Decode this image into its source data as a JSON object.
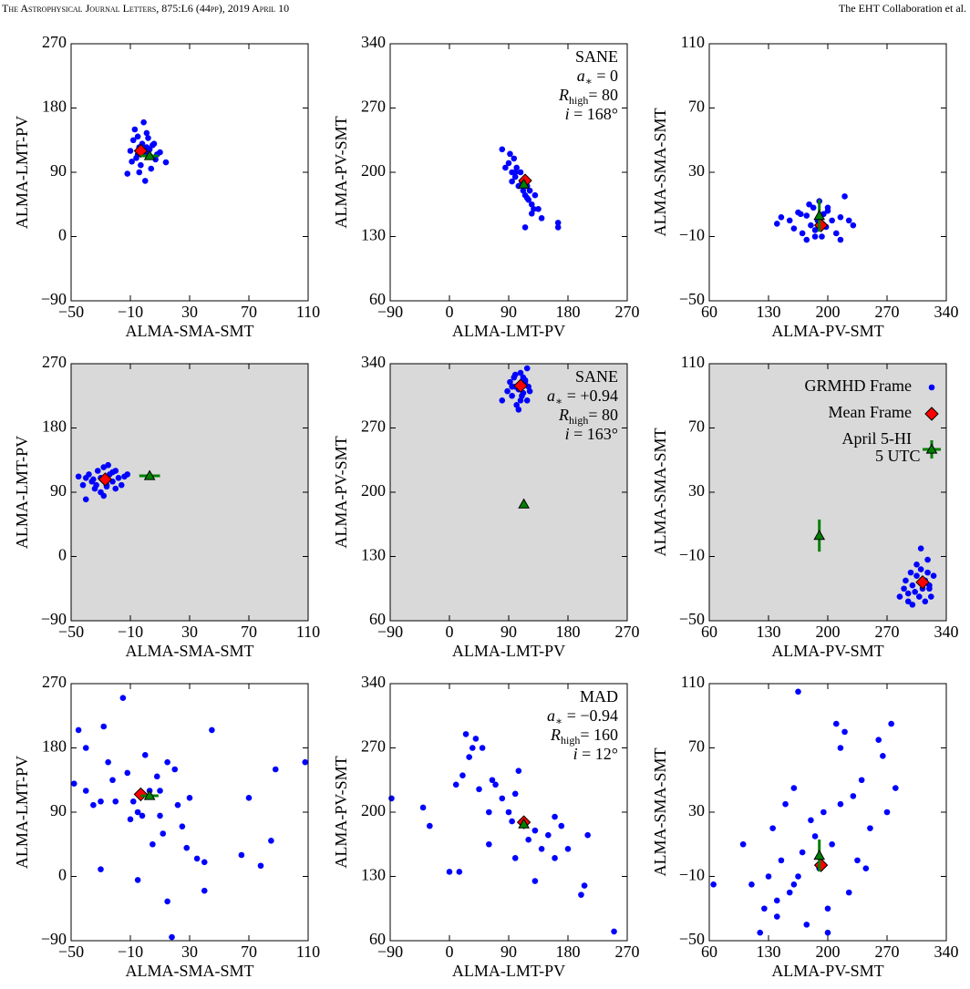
{
  "header": {
    "journal": "The Astrophysical Journal Letters, 875:L6 (44pp), 2019 April 10",
    "authors": "The EHT Collaboration et al."
  },
  "chart_data": [
    {
      "type": "scatter",
      "xlabel": "ALMA-SMA-SMT",
      "ylabel": "ALMA-LMT-PV",
      "background": "#ffffff",
      "xlim": [
        -50,
        110
      ],
      "xticks": [
        {
          "value": -50,
          "label": "−50"
        },
        {
          "value": -10,
          "label": "−10"
        },
        30,
        70,
        110
      ],
      "ylim": [
        -90,
        270
      ],
      "yticks": [
        {
          "value": -90,
          "label": "−90"
        },
        0,
        90,
        180,
        270
      ],
      "points": {
        "color": "#0000ff",
        "x": [
          -10,
          -8,
          -6,
          -5,
          -4,
          -3,
          -2,
          0,
          1,
          2,
          3,
          5,
          7,
          8,
          10,
          -12,
          -7,
          -1,
          4,
          6,
          -9,
          -5,
          0,
          2,
          14,
          -4,
          1
        ],
        "y": [
          120,
          135,
          110,
          140,
          125,
          100,
          130,
          118,
          145,
          112,
          122,
          128,
          108,
          115,
          118,
          88,
          150,
          160,
          95,
          130,
          105,
          115,
          78,
          138,
          104,
          90,
          125
        ]
      },
      "mean": {
        "color": "#ff0000",
        "x": -3,
        "y": 120
      },
      "observation": {
        "color": "#008000",
        "x": 3,
        "y": 113,
        "xerr": 6
      }
    },
    {
      "type": "scatter",
      "xlabel": "ALMA-LMT-PV",
      "ylabel": "ALMA-PV-SMT",
      "background": "#ffffff",
      "xlim": [
        -90,
        270
      ],
      "xticks": [
        {
          "value": -90,
          "label": "−90"
        },
        0,
        90,
        180,
        270
      ],
      "ylim": [
        60,
        340
      ],
      "yticks": [
        60,
        130,
        200,
        270,
        340
      ],
      "points": {
        "color": "#0000ff",
        "x": [
          80,
          85,
          90,
          92,
          95,
          98,
          100,
          102,
          105,
          108,
          110,
          112,
          115,
          118,
          120,
          122,
          125,
          128,
          130,
          135,
          140,
          100,
          115,
          165,
          165,
          118,
          95,
          125
        ],
        "y": [
          225,
          205,
          210,
          220,
          200,
          215,
          195,
          205,
          185,
          200,
          190,
          180,
          175,
          185,
          170,
          180,
          165,
          160,
          175,
          160,
          150,
          200,
          140,
          145,
          140,
          172,
          190,
          155
        ]
      },
      "mean": {
        "color": "#ff0000",
        "x": 115,
        "y": 191
      },
      "observation": {
        "color": "#008000",
        "x": 113,
        "y": 187
      },
      "annotation": [
        [
          {
            "text": "SANE"
          }
        ],
        [
          {
            "text": "a",
            "italic": true
          },
          {
            "text": "∗",
            "sub": true
          },
          {
            "text": " = 0"
          }
        ],
        [
          {
            "text": "R",
            "italic": true
          },
          {
            "text": "high",
            "sub": true
          },
          {
            "text": "= 80"
          }
        ],
        [
          {
            "text": "i",
            "italic": true
          },
          {
            "text": " = 168°"
          }
        ]
      ]
    },
    {
      "type": "scatter",
      "xlabel": "ALMA-PV-SMT",
      "ylabel": "ALMA-SMA-SMT",
      "background": "#ffffff",
      "xlim": [
        60,
        340
      ],
      "xticks": [
        60,
        130,
        200,
        270,
        340
      ],
      "ylim": [
        -50,
        110
      ],
      "yticks": [
        {
          "value": -50,
          "label": "−50"
        },
        {
          "value": -10,
          "label": "−10"
        },
        30,
        70,
        110
      ],
      "points": {
        "color": "#0000ff",
        "x": [
          140,
          145,
          155,
          160,
          165,
          170,
          175,
          178,
          180,
          183,
          185,
          188,
          190,
          193,
          195,
          198,
          200,
          205,
          210,
          215,
          220,
          225,
          175,
          200,
          215,
          185,
          168,
          230
        ],
        "y": [
          -2,
          2,
          0,
          -5,
          5,
          -8,
          3,
          10,
          -3,
          8,
          -6,
          0,
          12,
          -10,
          4,
          -4,
          6,
          0,
          -8,
          2,
          15,
          0,
          -12,
          8,
          -12,
          -10,
          4,
          -3
        ]
      },
      "mean": {
        "color": "#ff0000",
        "x": 192,
        "y": -3
      },
      "observation": {
        "color": "#008000",
        "x": 190,
        "y": 3,
        "yerr": 10
      }
    },
    {
      "type": "scatter",
      "xlabel": "ALMA-SMA-SMT",
      "ylabel": "ALMA-LMT-PV",
      "background": "#d9d9d9",
      "xlim": [
        -50,
        110
      ],
      "xticks": [
        {
          "value": -50,
          "label": "−50"
        },
        {
          "value": -10,
          "label": "−10"
        },
        30,
        70,
        110
      ],
      "ylim": [
        -90,
        270
      ],
      "yticks": [
        {
          "value": -90,
          "label": "−90"
        },
        0,
        90,
        180,
        270
      ],
      "points": {
        "color": "#0000ff",
        "x": [
          -45,
          -42,
          -40,
          -38,
          -36,
          -34,
          -32,
          -30,
          -28,
          -26,
          -24,
          -22,
          -20,
          -18,
          -16,
          -14,
          -30,
          -25,
          -20,
          -35,
          -40,
          -28,
          -22,
          -12,
          -33,
          -26
        ],
        "y": [
          112,
          100,
          80,
          115,
          105,
          95,
          120,
          110,
          125,
          100,
          115,
          105,
          120,
          110,
          100,
          112,
          90,
          128,
          95,
          108,
          110,
          85,
          118,
          115,
          100,
          98
        ]
      },
      "mean": {
        "color": "#ff0000",
        "x": -27,
        "y": 108
      },
      "observation": {
        "color": "#008000",
        "x": 3,
        "y": 113,
        "xerr": 7
      }
    },
    {
      "type": "scatter",
      "xlabel": "ALMA-LMT-PV",
      "ylabel": "ALMA-PV-SMT",
      "background": "#d9d9d9",
      "xlim": [
        -90,
        270
      ],
      "xticks": [
        {
          "value": -90,
          "label": "−90"
        },
        0,
        90,
        180,
        270
      ],
      "ylim": [
        60,
        340
      ],
      "yticks": [
        60,
        130,
        200,
        270,
        340
      ],
      "points": {
        "color": "#0000ff",
        "x": [
          80,
          88,
          92,
          95,
          98,
          100,
          102,
          105,
          108,
          110,
          112,
          115,
          118,
          120,
          122,
          100,
          105,
          110,
          115,
          95,
          108,
          112,
          103,
          118
        ],
        "y": [
          300,
          310,
          320,
          305,
          325,
          315,
          295,
          312,
          330,
          318,
          308,
          322,
          300,
          315,
          310,
          328,
          290,
          305,
          320,
          315,
          300,
          325,
          315,
          335
        ]
      },
      "mean": {
        "color": "#ff0000",
        "x": 108,
        "y": 316
      },
      "observation": {
        "color": "#008000",
        "x": 113,
        "y": 187
      },
      "annotation": [
        [
          {
            "text": "SANE"
          }
        ],
        [
          {
            "text": "a",
            "italic": true
          },
          {
            "text": "∗",
            "sub": true
          },
          {
            "text": " = +0.94"
          }
        ],
        [
          {
            "text": "R",
            "italic": true
          },
          {
            "text": "high",
            "sub": true
          },
          {
            "text": "= 80"
          }
        ],
        [
          {
            "text": "i",
            "italic": true
          },
          {
            "text": " = 163°"
          }
        ]
      ]
    },
    {
      "type": "scatter",
      "xlabel": "ALMA-PV-SMT",
      "ylabel": "ALMA-SMA-SMT",
      "background": "#d9d9d9",
      "xlim": [
        60,
        340
      ],
      "xticks": [
        60,
        130,
        200,
        270,
        340
      ],
      "ylim": [
        -50,
        110
      ],
      "yticks": [
        {
          "value": -50,
          "label": "−50"
        },
        {
          "value": -10,
          "label": "−10"
        },
        30,
        70,
        110
      ],
      "points": {
        "color": "#0000ff",
        "x": [
          285,
          290,
          292,
          295,
          298,
          300,
          303,
          305,
          308,
          310,
          312,
          315,
          318,
          320,
          322,
          325,
          300,
          310,
          315,
          305,
          320,
          312,
          295,
          318
        ],
        "y": [
          -35,
          -30,
          -25,
          -38,
          -20,
          -28,
          -32,
          -22,
          -35,
          -18,
          -30,
          -25,
          -12,
          -28,
          -35,
          -22,
          -40,
          -5,
          -38,
          -15,
          -30,
          -26,
          -33,
          -20
        ]
      },
      "mean": {
        "color": "#ff0000",
        "x": 312,
        "y": -26
      },
      "observation": {
        "color": "#008000",
        "x": 190,
        "y": 3,
        "yerr": 10
      },
      "legend": {
        "position": "upper right",
        "entries": [
          {
            "marker": "points",
            "lines": [
              "GRMHD Frame"
            ]
          },
          {
            "marker": "mean",
            "lines": [
              "Mean Frame"
            ]
          },
          {
            "marker": "observation",
            "lines": [
              "April 5-HI",
              "5 UTC"
            ]
          }
        ]
      }
    },
    {
      "type": "scatter",
      "xlabel": "ALMA-SMA-SMT",
      "ylabel": "ALMA-LMT-PV",
      "background": "#ffffff",
      "xlim": [
        -50,
        110
      ],
      "xticks": [
        {
          "value": -50,
          "label": "−50"
        },
        {
          "value": -10,
          "label": "−10"
        },
        30,
        70,
        110
      ],
      "ylim": [
        -90,
        270
      ],
      "yticks": [
        {
          "value": -90,
          "label": "−90"
        },
        0,
        90,
        180,
        270
      ],
      "points": {
        "color": "#0000ff",
        "x": [
          -48,
          -45,
          -40,
          -35,
          -30,
          -28,
          -25,
          -22,
          -20,
          -15,
          -12,
          -10,
          -8,
          -5,
          -2,
          0,
          3,
          5,
          8,
          10,
          12,
          15,
          18,
          20,
          22,
          25,
          28,
          30,
          35,
          40,
          45,
          65,
          70,
          78,
          85,
          88,
          108,
          -30,
          -5,
          15,
          40,
          10,
          -40
        ],
        "y": [
          130,
          205,
          120,
          100,
          10,
          210,
          160,
          135,
          105,
          250,
          145,
          80,
          105,
          -5,
          85,
          170,
          120,
          45,
          140,
          85,
          60,
          -35,
          -85,
          150,
          100,
          70,
          40,
          110,
          25,
          20,
          205,
          30,
          110,
          15,
          50,
          150,
          160,
          105,
          90,
          160,
          -20,
          120,
          180
        ]
      },
      "mean": {
        "color": "#ff0000",
        "x": -3,
        "y": 115
      },
      "observation": {
        "color": "#008000",
        "x": 3,
        "y": 113,
        "xerr": 6
      }
    },
    {
      "type": "scatter",
      "xlabel": "ALMA-LMT-PV",
      "ylabel": "ALMA-PV-SMT",
      "background": "#ffffff",
      "xlim": [
        -90,
        270
      ],
      "xticks": [
        {
          "value": -90,
          "label": "−90"
        },
        0,
        90,
        180,
        270
      ],
      "ylim": [
        60,
        340
      ],
      "yticks": [
        60,
        130,
        200,
        270,
        340
      ],
      "points": {
        "color": "#0000ff",
        "x": [
          -88,
          -40,
          -30,
          0,
          10,
          15,
          20,
          25,
          30,
          35,
          40,
          45,
          50,
          60,
          65,
          70,
          80,
          90,
          95,
          100,
          105,
          110,
          120,
          130,
          140,
          150,
          160,
          170,
          180,
          200,
          205,
          210,
          250,
          130,
          100,
          60,
          160
        ],
        "y": [
          215,
          205,
          185,
          135,
          230,
          135,
          240,
          285,
          260,
          270,
          280,
          225,
          270,
          200,
          235,
          230,
          215,
          200,
          190,
          220,
          245,
          190,
          170,
          180,
          160,
          175,
          150,
          185,
          160,
          110,
          120,
          175,
          70,
          125,
          150,
          165,
          195
        ]
      },
      "mean": {
        "color": "#ff0000",
        "x": 113,
        "y": 189
      },
      "observation": {
        "color": "#008000",
        "x": 113,
        "y": 187
      },
      "annotation": [
        [
          {
            "text": "MAD"
          }
        ],
        [
          {
            "text": "a",
            "italic": true
          },
          {
            "text": "∗",
            "sub": true
          },
          {
            "text": " = −0.94"
          }
        ],
        [
          {
            "text": "R",
            "italic": true
          },
          {
            "text": "high",
            "sub": true
          },
          {
            "text": "= 160"
          }
        ],
        [
          {
            "text": "i",
            "italic": true
          },
          {
            "text": " = 12°"
          }
        ]
      ]
    },
    {
      "type": "scatter",
      "xlabel": "ALMA-PV-SMT",
      "ylabel": "ALMA-SMA-SMT",
      "background": "#ffffff",
      "xlim": [
        60,
        340
      ],
      "xticks": [
        60,
        130,
        200,
        270,
        340
      ],
      "ylim": [
        -50,
        110
      ],
      "yticks": [
        {
          "value": -50,
          "label": "−50"
        },
        {
          "value": -10,
          "label": "−10"
        },
        30,
        70,
        110
      ],
      "points": {
        "color": "#0000ff",
        "x": [
          65,
          100,
          110,
          120,
          125,
          130,
          135,
          140,
          145,
          150,
          155,
          160,
          165,
          170,
          175,
          180,
          185,
          190,
          195,
          200,
          205,
          210,
          215,
          220,
          225,
          230,
          235,
          240,
          245,
          250,
          260,
          265,
          270,
          275,
          280,
          165,
          200,
          215,
          140,
          160
        ],
        "y": [
          -15,
          10,
          -15,
          -45,
          -30,
          -10,
          20,
          -35,
          0,
          35,
          -20,
          45,
          105,
          5,
          -40,
          25,
          15,
          -5,
          30,
          -30,
          10,
          85,
          35,
          80,
          -20,
          40,
          0,
          50,
          -5,
          20,
          75,
          65,
          30,
          85,
          45,
          -10,
          -45,
          70,
          -25,
          -15
        ]
      },
      "mean": {
        "color": "#ff0000",
        "x": 192,
        "y": -3
      },
      "observation": {
        "color": "#008000",
        "x": 190,
        "y": 3,
        "yerr": 10
      }
    }
  ]
}
